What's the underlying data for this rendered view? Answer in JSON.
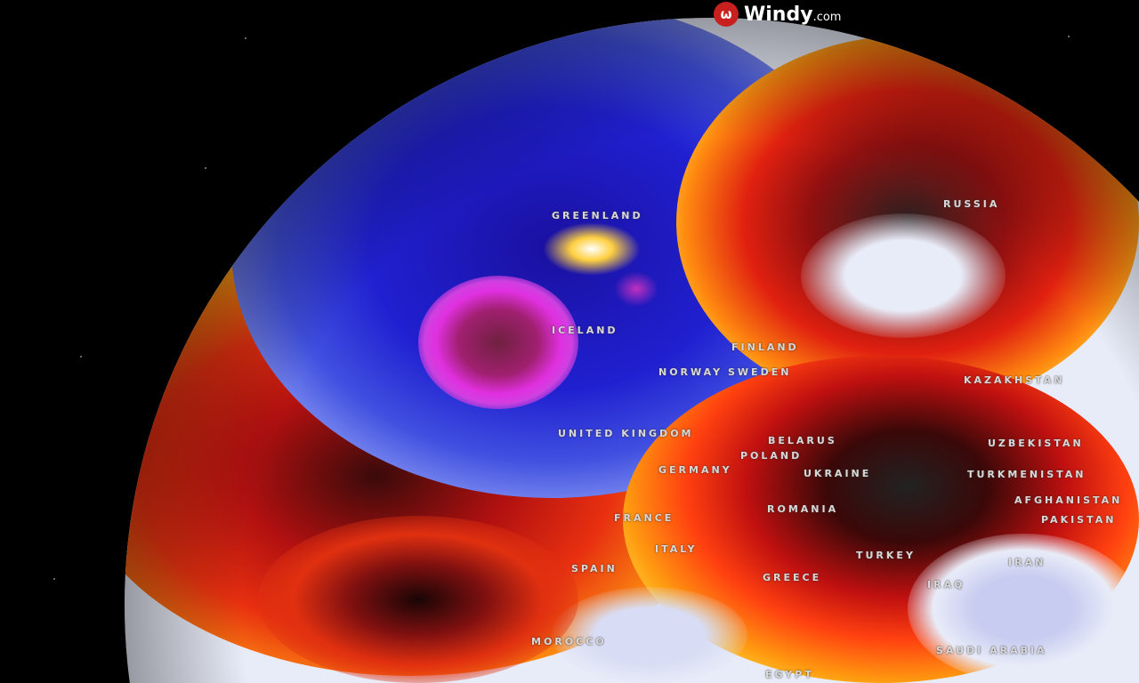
{
  "brand": {
    "name": "Windy",
    "suffix": ".com",
    "icon": "windy-logo-icon",
    "color": "#c8201e"
  },
  "map": {
    "labels": [
      "GREENLAND",
      "RUSSIA",
      "ICELAND",
      "FINLAND",
      "NORWAY",
      "SWEDEN",
      "UNITED KINGDOM",
      "GERMANY",
      "POLAND",
      "BELARUS",
      "UKRAINE",
      "KAZAKHSTAN",
      "UZBEKISTAN",
      "TURKMENISTAN",
      "AFGHANISTAN",
      "PAKISTAN",
      "ROMANIA",
      "FRANCE",
      "ITALY",
      "SPAIN",
      "GREECE",
      "TURKEY",
      "IRAN",
      "IRAQ",
      "MOROCCO",
      "SAUDI ARABIA",
      "EGYPT"
    ]
  }
}
